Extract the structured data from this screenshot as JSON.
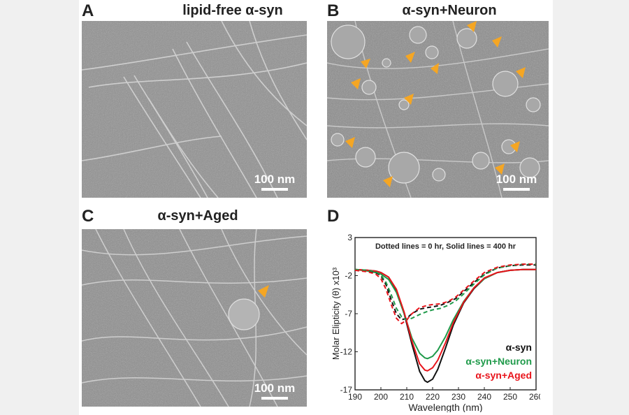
{
  "panels": {
    "a": {
      "label": "A",
      "title": "lipid-free α-syn",
      "scale_bar": "100 nm"
    },
    "b": {
      "label": "B",
      "title": "α-syn+Neuron",
      "scale_bar": "100 nm"
    },
    "c": {
      "label": "C",
      "title": "α-syn+Aged",
      "scale_bar": "100 nm"
    },
    "d": {
      "label": "D"
    }
  },
  "colors": {
    "asyn": "#111111",
    "neuron": "#1f9a4a",
    "aged": "#e8141b",
    "arrow": "#f5a623"
  },
  "chart_data": {
    "type": "line",
    "annotation": "Dotted lines = 0 hr, Solid lines = 400 hr",
    "xlabel": "Wavelength (nm)",
    "ylabel": "Molar Elipticity (θ) x10³",
    "xlim": [
      190,
      260
    ],
    "ylim": [
      -17,
      3
    ],
    "xticks": [
      "190",
      "200",
      "210",
      "220",
      "230",
      "240",
      "250",
      "260"
    ],
    "yticks": [
      "3",
      "-2",
      "-7",
      "-12",
      "-17"
    ],
    "legend": [
      "α-syn",
      "α-syn+Neuron",
      "α-syn+Aged"
    ],
    "legend_position": "bottom-right",
    "series": [
      {
        "name": "α-syn",
        "style": "solid",
        "x": [
          190,
          195,
          198,
          200,
          203,
          206,
          209,
          212,
          215,
          217,
          218,
          220,
          222,
          225,
          228,
          232,
          236,
          240,
          245,
          250,
          255,
          260
        ],
        "y": [
          -1.2,
          -1.3,
          -1.4,
          -1.6,
          -2.2,
          -4.0,
          -7.0,
          -11.0,
          -14.6,
          -15.8,
          -16.0,
          -15.6,
          -14.3,
          -11.5,
          -8.5,
          -5.6,
          -3.7,
          -2.4,
          -1.6,
          -1.3,
          -1.2,
          -1.2
        ]
      },
      {
        "name": "α-syn+Neuron",
        "style": "solid",
        "x": [
          190,
          195,
          198,
          200,
          203,
          206,
          209,
          212,
          215,
          217,
          218,
          220,
          222,
          225,
          228,
          232,
          236,
          240,
          245,
          250,
          255,
          260
        ],
        "y": [
          -1.2,
          -1.4,
          -1.6,
          -1.8,
          -2.5,
          -4.2,
          -7.0,
          -10.2,
          -12.2,
          -12.8,
          -12.9,
          -12.6,
          -11.8,
          -10.0,
          -7.8,
          -5.4,
          -3.6,
          -2.4,
          -1.6,
          -1.3,
          -1.2,
          -1.2
        ]
      },
      {
        "name": "α-syn+Aged",
        "style": "solid",
        "x": [
          190,
          195,
          198,
          200,
          203,
          206,
          209,
          212,
          215,
          217,
          218,
          220,
          222,
          225,
          228,
          232,
          236,
          240,
          245,
          250,
          255,
          260
        ],
        "y": [
          -1.2,
          -1.3,
          -1.4,
          -1.6,
          -2.2,
          -3.8,
          -6.8,
          -10.6,
          -13.6,
          -14.4,
          -14.5,
          -14.1,
          -13.1,
          -10.8,
          -8.2,
          -5.5,
          -3.6,
          -2.3,
          -1.6,
          -1.3,
          -1.2,
          -1.2
        ]
      },
      {
        "name": "α-syn 0 hr",
        "style": "dotted",
        "x": [
          190,
          195,
          198,
          200,
          202,
          204,
          206,
          208,
          210,
          212,
          215,
          218,
          220,
          223,
          226,
          229,
          232,
          236,
          240,
          245,
          250,
          255,
          260
        ],
        "y": [
          -1.3,
          -1.4,
          -1.6,
          -2.0,
          -3.2,
          -5.2,
          -7.0,
          -7.8,
          -7.6,
          -7.0,
          -6.4,
          -6.2,
          -6.1,
          -5.9,
          -5.5,
          -5.0,
          -4.1,
          -2.9,
          -1.8,
          -1.0,
          -0.7,
          -0.6,
          -0.6
        ]
      },
      {
        "name": "α-syn+Neuron 0 hr",
        "style": "dotted",
        "x": [
          190,
          195,
          198,
          200,
          202,
          204,
          206,
          208,
          210,
          212,
          215,
          218,
          220,
          223,
          226,
          229,
          232,
          236,
          240,
          245,
          250,
          255,
          260
        ],
        "y": [
          -1.2,
          -1.3,
          -1.5,
          -1.9,
          -2.9,
          -4.5,
          -6.3,
          -7.4,
          -7.8,
          -7.6,
          -7.1,
          -6.7,
          -6.5,
          -6.3,
          -5.9,
          -5.3,
          -4.4,
          -3.1,
          -1.9,
          -1.0,
          -0.7,
          -0.5,
          -0.5
        ]
      },
      {
        "name": "α-syn+Aged 0 hr",
        "style": "dotted",
        "x": [
          190,
          195,
          198,
          200,
          202,
          204,
          206,
          208,
          210,
          212,
          215,
          218,
          220,
          223,
          226,
          229,
          232,
          236,
          240,
          245,
          250,
          255,
          260
        ],
        "y": [
          -1.3,
          -1.5,
          -1.8,
          -2.4,
          -3.8,
          -5.8,
          -7.6,
          -8.3,
          -7.8,
          -7.0,
          -6.2,
          -5.9,
          -5.8,
          -5.7,
          -5.4,
          -4.8,
          -3.9,
          -2.7,
          -1.6,
          -0.9,
          -0.6,
          -0.5,
          -0.5
        ]
      }
    ]
  }
}
